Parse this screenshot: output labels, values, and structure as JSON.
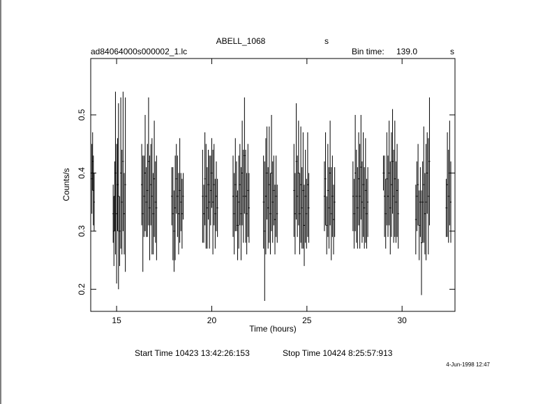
{
  "chart_data": {
    "type": "errorbar",
    "title": "ABELL_1068",
    "title_unit": "s",
    "file_name": "ad84064000s000002_1.lc",
    "bin_time_label": "Bin time:",
    "bin_time": "139.0",
    "bin_time_unit": "s",
    "x_label": "Time (hours)",
    "y_label": "Counts/s",
    "start_time": "Start Time 10423 13:42:26:153",
    "stop_time": "Stop Time 10424  8:25:57:913",
    "date_stamp": "4-Jun-1998 12:47",
    "color": "#000000",
    "xlim": [
      13.64,
      32.78
    ],
    "ylim": [
      0.162,
      0.597
    ],
    "xticks": [
      15,
      20,
      25,
      30
    ],
    "yticks": [
      0.2,
      0.3,
      0.4,
      0.5
    ],
    "x": [
      13.7,
      13.74,
      13.78,
      13.82,
      14.82,
      14.86,
      14.9,
      14.94,
      15.0,
      15.05,
      15.1,
      15.16,
      15.22,
      15.28,
      15.34,
      15.4,
      15.46,
      16.32,
      16.38,
      16.44,
      16.5,
      16.56,
      16.62,
      16.68,
      16.74,
      16.8,
      16.86,
      16.92,
      16.98,
      17.04,
      17.1,
      17.9,
      17.96,
      18.02,
      18.08,
      18.14,
      18.2,
      18.26,
      18.32,
      18.38,
      18.44,
      18.5,
      19.52,
      19.58,
      19.64,
      19.7,
      19.76,
      19.82,
      19.88,
      19.94,
      20.0,
      20.06,
      20.12,
      20.18,
      20.24,
      20.3,
      21.12,
      21.18,
      21.24,
      21.3,
      21.36,
      21.42,
      21.48,
      21.54,
      21.6,
      21.66,
      21.72,
      21.78,
      21.84,
      21.9,
      21.96,
      22.72,
      22.78,
      22.84,
      22.9,
      22.96,
      23.02,
      23.08,
      23.14,
      23.2,
      23.26,
      23.32,
      23.38,
      23.44,
      24.32,
      24.38,
      24.44,
      24.5,
      24.56,
      24.62,
      24.68,
      24.74,
      24.8,
      24.86,
      24.92,
      24.98,
      25.04,
      25.1,
      25.92,
      25.98,
      26.04,
      26.1,
      26.16,
      26.22,
      26.28,
      26.34,
      26.4,
      26.46,
      27.42,
      27.48,
      27.54,
      27.6,
      27.66,
      27.72,
      27.78,
      27.84,
      27.9,
      27.96,
      28.02,
      28.08,
      28.14,
      28.2,
      29.02,
      29.08,
      29.14,
      29.2,
      29.26,
      29.32,
      29.38,
      29.44,
      29.5,
      29.56,
      29.62,
      29.68,
      29.74,
      29.8,
      30.72,
      30.78,
      30.84,
      30.9,
      30.96,
      31.02,
      31.08,
      31.14,
      31.2,
      31.26,
      31.32,
      31.38,
      31.44,
      32.32,
      32.38,
      32.44,
      32.5,
      32.56
    ],
    "values": [
      0.39,
      0.42,
      0.37,
      0.35,
      0.33,
      0.3,
      0.36,
      0.4,
      0.33,
      0.38,
      0.36,
      0.3,
      0.4,
      0.35,
      0.42,
      0.33,
      0.38,
      0.38,
      0.33,
      0.36,
      0.4,
      0.35,
      0.37,
      0.42,
      0.34,
      0.38,
      0.36,
      0.33,
      0.39,
      0.35,
      0.34,
      0.36,
      0.33,
      0.3,
      0.34,
      0.39,
      0.36,
      0.33,
      0.37,
      0.35,
      0.33,
      0.36,
      0.36,
      0.33,
      0.39,
      0.36,
      0.34,
      0.38,
      0.35,
      0.37,
      0.4,
      0.35,
      0.38,
      0.33,
      0.36,
      0.34,
      0.36,
      0.33,
      0.38,
      0.36,
      0.31,
      0.35,
      0.38,
      0.33,
      0.4,
      0.36,
      0.43,
      0.36,
      0.33,
      0.37,
      0.34,
      0.35,
      0.3,
      0.36,
      0.4,
      0.34,
      0.38,
      0.33,
      0.4,
      0.35,
      0.37,
      0.32,
      0.36,
      0.33,
      0.37,
      0.33,
      0.42,
      0.36,
      0.4,
      0.33,
      0.38,
      0.34,
      0.37,
      0.31,
      0.36,
      0.33,
      0.38,
      0.34,
      0.36,
      0.39,
      0.31,
      0.37,
      0.34,
      0.4,
      0.33,
      0.36,
      0.32,
      0.35,
      0.36,
      0.33,
      0.4,
      0.36,
      0.34,
      0.39,
      0.36,
      0.41,
      0.35,
      0.38,
      0.34,
      0.37,
      0.33,
      0.35,
      0.4,
      0.36,
      0.33,
      0.39,
      0.36,
      0.4,
      0.34,
      0.38,
      0.42,
      0.36,
      0.39,
      0.35,
      0.37,
      0.33,
      0.32,
      0.36,
      0.38,
      0.31,
      0.35,
      0.28,
      0.35,
      0.38,
      0.33,
      0.35,
      0.4,
      0.36,
      0.42,
      0.34,
      0.38,
      0.36,
      0.4,
      0.35
    ],
    "errors": [
      0.06,
      0.05,
      0.06,
      0.05,
      0.05,
      0.06,
      0.06,
      0.14,
      0.12,
      0.08,
      0.16,
      0.06,
      0.13,
      0.09,
      0.12,
      0.07,
      0.15,
      0.07,
      0.1,
      0.07,
      0.1,
      0.06,
      0.08,
      0.11,
      0.09,
      0.07,
      0.1,
      0.07,
      0.1,
      0.07,
      0.09,
      0.05,
      0.08,
      0.07,
      0.09,
      0.06,
      0.07,
      0.07,
      0.09,
      0.05,
      0.06,
      0.04,
      0.08,
      0.05,
      0.08,
      0.09,
      0.07,
      0.06,
      0.08,
      0.06,
      0.06,
      0.09,
      0.07,
      0.06,
      0.06,
      0.05,
      0.07,
      0.07,
      0.08,
      0.06,
      0.06,
      0.08,
      0.07,
      0.08,
      0.09,
      0.08,
      0.1,
      0.08,
      0.07,
      0.08,
      0.06,
      0.08,
      0.12,
      0.1,
      0.08,
      0.07,
      0.1,
      0.07,
      0.1,
      0.07,
      0.06,
      0.06,
      0.07,
      0.05,
      0.08,
      0.07,
      0.1,
      0.07,
      0.09,
      0.07,
      0.1,
      0.07,
      0.1,
      0.07,
      0.08,
      0.06,
      0.09,
      0.06,
      0.06,
      0.08,
      0.05,
      0.08,
      0.07,
      0.09,
      0.08,
      0.07,
      0.06,
      0.06,
      0.06,
      0.06,
      0.1,
      0.08,
      0.07,
      0.08,
      0.09,
      0.09,
      0.07,
      0.09,
      0.07,
      0.09,
      0.06,
      0.06,
      0.03,
      0.07,
      0.06,
      0.08,
      0.07,
      0.09,
      0.08,
      0.09,
      0.09,
      0.08,
      0.1,
      0.07,
      0.08,
      0.06,
      0.06,
      0.06,
      0.07,
      0.06,
      0.06,
      0.09,
      0.07,
      0.1,
      0.07,
      0.1,
      0.07,
      0.1,
      0.11,
      0.05,
      0.09,
      0.08,
      0.09,
      0.07
    ]
  }
}
